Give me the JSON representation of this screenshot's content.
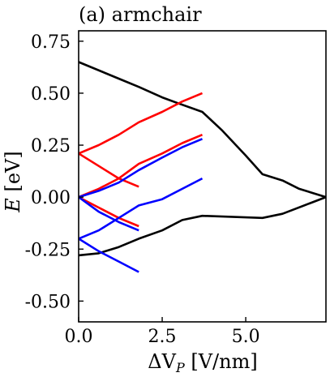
{
  "chart_data": {
    "type": "line",
    "title": "(a) armchair",
    "xlabel": "ΔV",
    "xlabel_sub": "P",
    "xlabel_unit": " [V/nm]",
    "ylabel": "E",
    "ylabel_unit": " [eV]",
    "xlim": [
      0.0,
      7.4
    ],
    "ylim": [
      -0.6,
      0.8
    ],
    "xticks": [
      0.0,
      2.5,
      5.0
    ],
    "xtick_labels": [
      "0.0",
      "2.5",
      "5.0"
    ],
    "yticks": [
      0.75,
      0.5,
      0.25,
      0.0,
      -0.25,
      -0.5
    ],
    "ytick_labels": [
      "0.75",
      "0.50",
      "0.25",
      "0.00",
      "-0.25",
      "-0.50"
    ],
    "grid": false,
    "colors": {
      "black": "#000000",
      "red": "#ff0000",
      "blue": "#0000ff"
    },
    "series": [
      {
        "color": "black",
        "x": [
          0.0,
          1.2,
          1.8,
          2.5,
          3.0,
          3.7,
          4.3,
          5.0,
          5.5,
          6.1,
          6.6,
          7.4
        ],
        "y": [
          0.65,
          0.57,
          0.53,
          0.48,
          0.45,
          0.41,
          0.32,
          0.2,
          0.11,
          0.08,
          0.04,
          0.0
        ]
      },
      {
        "color": "black",
        "x": [
          0.0,
          0.6,
          1.2,
          1.8,
          2.5,
          3.1,
          3.7,
          5.5,
          6.1,
          7.4
        ],
        "y": [
          -0.28,
          -0.27,
          -0.24,
          -0.2,
          -0.16,
          -0.11,
          -0.09,
          -0.1,
          -0.08,
          0.0
        ]
      },
      {
        "color": "red",
        "x": [
          0.0,
          0.6,
          1.2,
          1.8,
          2.5,
          3.1,
          3.7
        ],
        "y": [
          0.21,
          0.25,
          0.3,
          0.36,
          0.41,
          0.46,
          0.5
        ]
      },
      {
        "color": "red",
        "x": [
          0.0,
          0.6,
          1.2,
          1.8
        ],
        "y": [
          0.21,
          0.15,
          0.09,
          0.05
        ]
      },
      {
        "color": "red",
        "x": [
          0.0,
          0.6,
          1.2,
          1.8,
          2.5,
          3.1,
          3.7
        ],
        "y": [
          0.0,
          0.04,
          0.09,
          0.16,
          0.21,
          0.26,
          0.3
        ]
      },
      {
        "color": "red",
        "x": [
          0.0,
          0.6,
          1.2,
          1.8
        ],
        "y": [
          0.0,
          -0.05,
          -0.1,
          -0.14
        ]
      },
      {
        "color": "blue",
        "x": [
          0.0,
          0.6,
          1.2,
          1.8,
          2.5,
          3.1,
          3.7
        ],
        "y": [
          0.0,
          0.03,
          0.07,
          0.13,
          0.19,
          0.24,
          0.28
        ]
      },
      {
        "color": "blue",
        "x": [
          0.0,
          0.6,
          1.2,
          1.8
        ],
        "y": [
          0.0,
          -0.07,
          -0.12,
          -0.16
        ]
      },
      {
        "color": "blue",
        "x": [
          0.0,
          0.6,
          1.2,
          1.8,
          2.5,
          3.1,
          3.7
        ],
        "y": [
          -0.2,
          -0.16,
          -0.1,
          -0.04,
          -0.01,
          0.04,
          0.09
        ]
      },
      {
        "color": "blue",
        "x": [
          0.0,
          0.6,
          1.2,
          1.8
        ],
        "y": [
          -0.2,
          -0.26,
          -0.31,
          -0.36
        ]
      }
    ]
  }
}
